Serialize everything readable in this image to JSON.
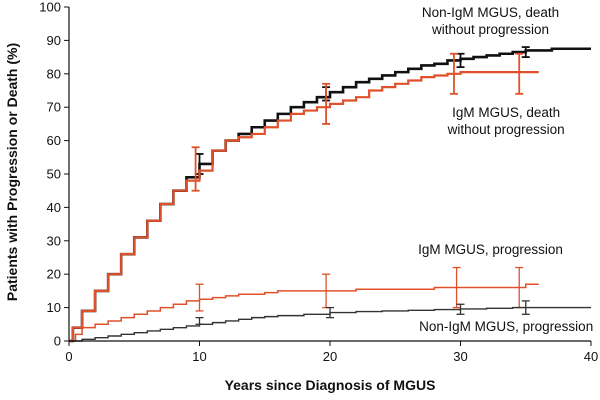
{
  "chart_data": {
    "type": "line",
    "title": "",
    "xlabel": "Years since Diagnosis of MGUS",
    "ylabel": "Patients with Progression or Death (%)",
    "xlim": [
      0,
      40
    ],
    "ylim": [
      0,
      100
    ],
    "xticks": [
      0,
      10,
      20,
      30,
      40
    ],
    "yticks": [
      0,
      10,
      20,
      30,
      40,
      50,
      60,
      70,
      80,
      90,
      100
    ],
    "grid": false,
    "legend": "none",
    "series": [
      {
        "color": "#111111",
        "x": [
          0,
          0.3,
          1,
          2,
          3,
          4,
          5,
          6,
          7,
          8,
          9,
          10,
          11,
          12,
          13,
          14,
          15,
          16,
          17,
          18,
          19,
          20,
          21,
          22,
          23,
          24,
          25,
          26,
          27,
          28,
          29,
          30,
          31,
          32,
          33,
          34,
          35,
          36,
          37,
          38,
          39,
          40
        ],
        "y": [
          0,
          4,
          9,
          15,
          20,
          26,
          31,
          36,
          41,
          45,
          49,
          53,
          57,
          60,
          62,
          64,
          66,
          68,
          70,
          71.5,
          73,
          74.5,
          76,
          77.5,
          78.5,
          79.5,
          80.5,
          81.5,
          82.5,
          83,
          84,
          84.5,
          85,
          85.5,
          86,
          86.5,
          87,
          87,
          87.5,
          87.5,
          87.5,
          87.5
        ],
        "error_bars": [
          {
            "x": 10,
            "low": 50,
            "high": 56
          },
          {
            "x": 19.7,
            "low": 72,
            "high": 76
          },
          {
            "x": 30,
            "low": 82,
            "high": 86
          },
          {
            "x": 35,
            "low": 85,
            "high": 88
          }
        ]
      },
      {
        "color": "#e0502a",
        "x": [
          0,
          0.3,
          1,
          2,
          3,
          4,
          5,
          6,
          7,
          8,
          9,
          10,
          11,
          12,
          13,
          14,
          15,
          16,
          17,
          18,
          19,
          20,
          21,
          22,
          23,
          24,
          25,
          26,
          27,
          28,
          29,
          30,
          31,
          32,
          33,
          34,
          35,
          36
        ],
        "y": [
          0,
          4,
          9,
          15,
          20,
          26,
          31,
          36,
          41,
          45,
          48,
          51,
          57,
          60,
          61,
          62,
          64,
          66,
          68,
          69,
          70,
          71,
          72,
          73,
          75,
          76,
          77,
          78,
          79,
          79.5,
          80,
          80.5,
          80.5,
          80.5,
          80.5,
          80.5,
          80.5,
          80.5
        ],
        "error_bars": [
          {
            "x": 9.7,
            "low": 45,
            "high": 58
          },
          {
            "x": 19.7,
            "low": 65,
            "high": 77
          },
          {
            "x": 29.5,
            "low": 74,
            "high": 86
          },
          {
            "x": 34.5,
            "low": 74,
            "high": 86
          }
        ]
      },
      {
        "color": "#e0502a",
        "x": [
          0,
          0.5,
          1,
          2,
          3,
          4,
          5,
          6,
          7,
          8,
          9,
          10,
          11,
          12,
          13,
          14,
          15,
          16,
          18,
          20,
          22,
          24,
          26,
          28,
          30,
          32,
          34,
          35,
          36
        ],
        "y": [
          0,
          2,
          4,
          5,
          6,
          7,
          8,
          9,
          10,
          11,
          12,
          12.5,
          13,
          13.5,
          14,
          14,
          14.5,
          15,
          15,
          15,
          15.5,
          15.5,
          15.5,
          16,
          16,
          16,
          16,
          17,
          17
        ],
        "error_bars": [
          {
            "x": 10,
            "low": 9,
            "high": 17
          },
          {
            "x": 19.7,
            "low": 10,
            "high": 20
          },
          {
            "x": 29.7,
            "low": 10,
            "high": 22
          },
          {
            "x": 34.5,
            "low": 10,
            "high": 22
          }
        ]
      },
      {
        "color": "#333333",
        "x": [
          0,
          1,
          2,
          3,
          4,
          5,
          6,
          7,
          8,
          9,
          10,
          11,
          12,
          13,
          14,
          15,
          16,
          18,
          20,
          22,
          24,
          26,
          28,
          30,
          32,
          34,
          36,
          38,
          40
        ],
        "y": [
          0,
          0.5,
          1,
          1.5,
          2,
          2.5,
          3,
          3.5,
          4,
          4.5,
          5,
          5.5,
          6,
          6.5,
          7,
          7.3,
          7.6,
          8,
          8.5,
          8.8,
          9,
          9.2,
          9.4,
          9.6,
          9.8,
          10,
          10,
          10,
          10
        ],
        "error_bars": [
          {
            "x": 10,
            "low": 5,
            "high": 7
          },
          {
            "x": 20,
            "low": 7,
            "high": 10
          },
          {
            "x": 30,
            "low": 8,
            "high": 11
          },
          {
            "x": 35,
            "low": 8,
            "high": 12
          }
        ]
      }
    ],
    "annotations": [
      {
        "lines": [
          "Non-IgM MGUS, death",
          "without progression"
        ],
        "x": 32.3,
        "y": 97,
        "color": "#111111"
      },
      {
        "lines": [
          "IgM MGUS, death",
          "without progression"
        ],
        "x": 33.5,
        "y": 67,
        "color": "#111111"
      },
      {
        "lines": [
          "IgM MGUS, progression"
        ],
        "x": 32.3,
        "y": 26,
        "color": "#111111"
      },
      {
        "lines": [
          "Non-IgM MGUS, progression"
        ],
        "x": 33.5,
        "y": 3,
        "color": "#111111"
      }
    ]
  }
}
